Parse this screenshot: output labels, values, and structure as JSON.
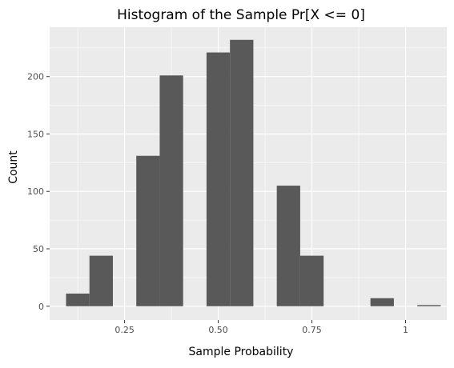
{
  "chart_data": {
    "type": "bar",
    "title": "Histogram of the Sample Pr[X <= 0]",
    "xlabel": "Sample Probability",
    "ylabel": "Count",
    "xlim": [
      0.05,
      1.11
    ],
    "ylim": [
      -12,
      243
    ],
    "x_ticks": [
      {
        "value": 0.25,
        "label": "0.25"
      },
      {
        "value": 0.5,
        "label": "0.50"
      },
      {
        "value": 0.75,
        "label": "0.75"
      },
      {
        "value": 1.0,
        "label": "1"
      }
    ],
    "y_ticks": [
      {
        "value": 0,
        "label": "0"
      },
      {
        "value": 50,
        "label": "50"
      },
      {
        "value": 100,
        "label": "100"
      },
      {
        "value": 150,
        "label": "150"
      },
      {
        "value": 200,
        "label": "200"
      }
    ],
    "bin_width": 0.0625,
    "bins": [
      {
        "x": 0.125,
        "count": 11
      },
      {
        "x": 0.1875,
        "count": 44
      },
      {
        "x": 0.25,
        "count": 0
      },
      {
        "x": 0.3125,
        "count": 131
      },
      {
        "x": 0.375,
        "count": 201
      },
      {
        "x": 0.4375,
        "count": 0
      },
      {
        "x": 0.5,
        "count": 221
      },
      {
        "x": 0.5625,
        "count": 232
      },
      {
        "x": 0.625,
        "count": 0
      },
      {
        "x": 0.6875,
        "count": 105
      },
      {
        "x": 0.75,
        "count": 44
      },
      {
        "x": 0.8125,
        "count": 0
      },
      {
        "x": 0.875,
        "count": 0
      },
      {
        "x": 0.9375,
        "count": 7
      },
      {
        "x": 1.0,
        "count": 0
      },
      {
        "x": 1.0625,
        "count": 1
      }
    ],
    "grid": true,
    "bar_color": "#595959",
    "panel_color": "#ebebeb",
    "grid_color": "#ffffff"
  }
}
